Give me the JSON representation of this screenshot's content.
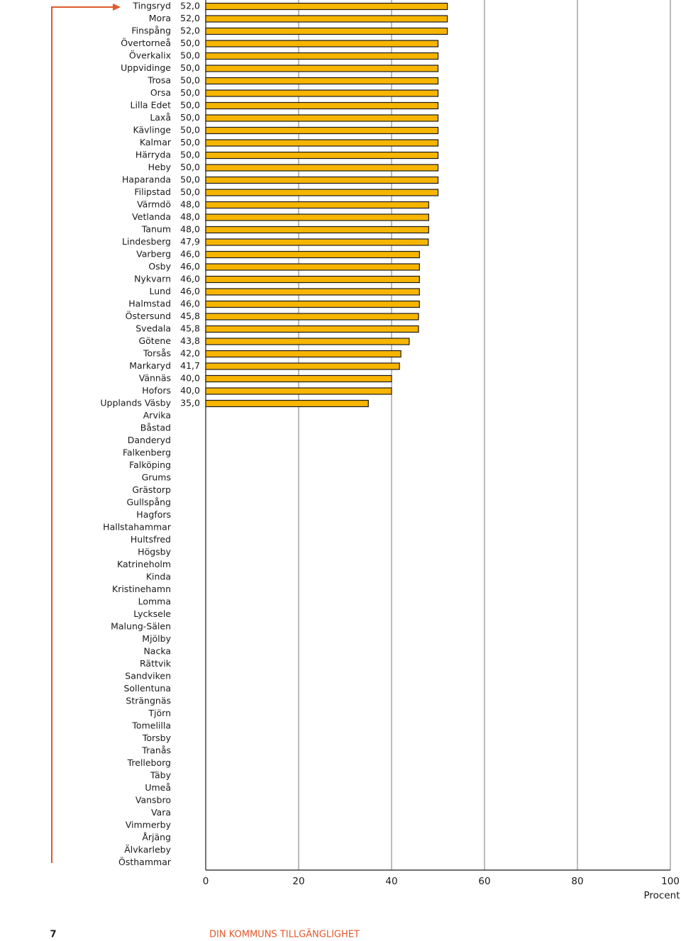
{
  "chart_data": {
    "type": "bar",
    "orientation": "horizontal",
    "categories": [
      "Tingsryd",
      "Mora",
      "Finspång",
      "Övertorneå",
      "Överkalix",
      "Uppvidinge",
      "Trosa",
      "Orsa",
      "Lilla Edet",
      "Laxå",
      "Kävlinge",
      "Kalmar",
      "Härryda",
      "Heby",
      "Haparanda",
      "Filipstad",
      "Värmdö",
      "Vetlanda",
      "Tanum",
      "Lindesberg",
      "Varberg",
      "Osby",
      "Nykvarn",
      "Lund",
      "Halmstad",
      "Östersund",
      "Svedala",
      "Götene",
      "Torsås",
      "Markaryd",
      "Vännäs",
      "Hofors",
      "Upplands Väsby",
      "Arvika",
      "Båstad",
      "Danderyd",
      "Falkenberg",
      "Falköping",
      "Grums",
      "Grästorp",
      "Gullspång",
      "Hagfors",
      "Hallstahammar",
      "Hultsfred",
      "Högsby",
      "Katrineholm",
      "Kinda",
      "Kristinehamn",
      "Lomma",
      "Lycksele",
      "Malung-Sälen",
      "Mjölby",
      "Nacka",
      "Rättvik",
      "Sandviken",
      "Sollentuna",
      "Strängnäs",
      "Tjörn",
      "Tomelilla",
      "Torsby",
      "Tranås",
      "Trelleborg",
      "Täby",
      "Umeå",
      "Vansbro",
      "Vara",
      "Vimmerby",
      "Årjäng",
      "Älvkarleby",
      "Östhammar"
    ],
    "values": [
      52,
      52,
      52,
      50,
      50,
      50,
      50,
      50,
      50,
      50,
      50,
      50,
      50,
      50,
      50,
      50,
      48,
      48,
      48,
      47.9,
      46,
      46,
      46,
      46,
      46,
      45.8,
      45.8,
      43.8,
      42,
      41.7,
      40,
      40,
      35,
      null,
      null,
      null,
      null,
      null,
      null,
      null,
      null,
      null,
      null,
      null,
      null,
      null,
      null,
      null,
      null,
      null,
      null,
      null,
      null,
      null,
      null,
      null,
      null,
      null,
      null,
      null,
      null,
      null,
      null,
      null,
      null,
      null,
      null,
      null,
      null,
      null
    ],
    "value_labels": [
      "52,0",
      "52,0",
      "52,0",
      "50,0",
      "50,0",
      "50,0",
      "50,0",
      "50,0",
      "50,0",
      "50,0",
      "50,0",
      "50,0",
      "50,0",
      "50,0",
      "50,0",
      "50,0",
      "48,0",
      "48,0",
      "48,0",
      "47,9",
      "46,0",
      "46,0",
      "46,0",
      "46,0",
      "46,0",
      "45,8",
      "45,8",
      "43,8",
      "42,0",
      "41,7",
      "40,0",
      "40,0",
      "35,0",
      null,
      null,
      null,
      null,
      null,
      null,
      null,
      null,
      null,
      null,
      null,
      null,
      null,
      null,
      null,
      null,
      null,
      null,
      null,
      null,
      null,
      null,
      null,
      null,
      null,
      null,
      null,
      null,
      null,
      null,
      null,
      null,
      null,
      null,
      null,
      null,
      null
    ],
    "color": "#f7b500",
    "xlim": [
      0,
      100
    ],
    "xticks": [
      0,
      20,
      40,
      60,
      80,
      100
    ],
    "x_label": "Procent",
    "grid": true
  },
  "footer": {
    "page_number": "7",
    "title": "DIN KOMMUNS TILLGÄNGLIGHET"
  }
}
